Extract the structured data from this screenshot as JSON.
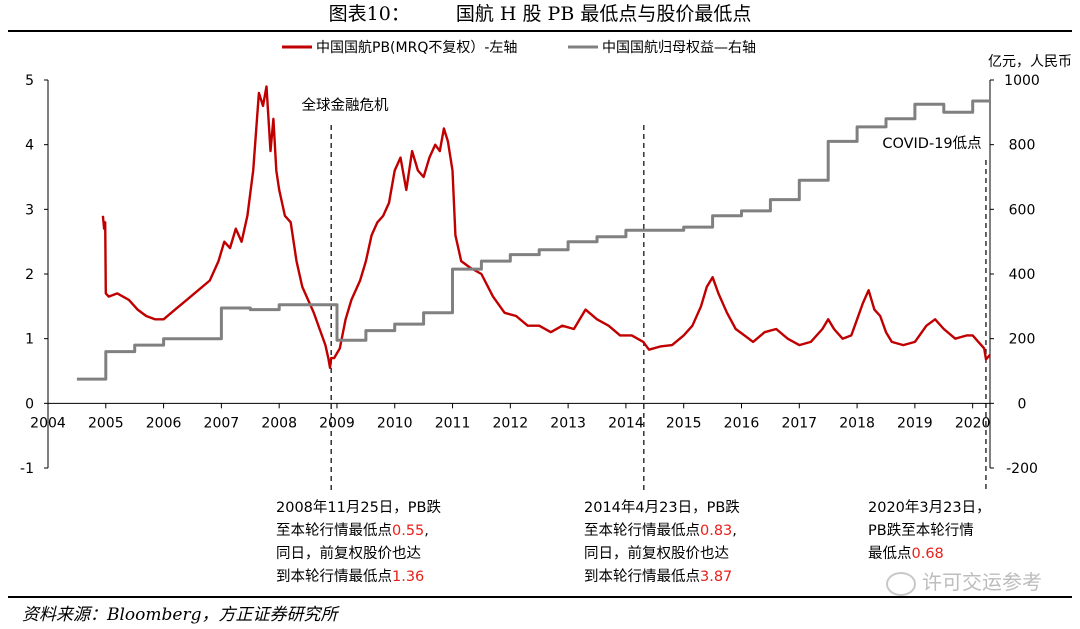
{
  "figure": {
    "number": "图表10：",
    "title": "国航 H 股 PB 最低点与股价最低点",
    "source": "资料来源：Bloomberg，方正证券研究所",
    "watermark": "许可交运参考",
    "right_axis_unit": "亿元，人民币"
  },
  "colors": {
    "pb": "#c00000",
    "equity": "#808080",
    "annotation_red": "#e8201a"
  },
  "chart_data": {
    "type": "line",
    "x_ticks": [
      "2004",
      "2005",
      "2006",
      "2007",
      "2008",
      "2009",
      "2010",
      "2011",
      "2012",
      "2013",
      "2014",
      "2015",
      "2016",
      "2017",
      "2018",
      "2019",
      "2020"
    ],
    "xlim": [
      2004,
      2020.3
    ],
    "y_left": {
      "ticks": [
        "5",
        "4",
        "3",
        "2",
        "1",
        "0",
        "-1"
      ],
      "ylim": [
        -1,
        5
      ]
    },
    "y_right": {
      "ticks": [
        "1000",
        "800",
        "600",
        "400",
        "200",
        "0",
        "-200"
      ],
      "ylim": [
        -200,
        1000
      ],
      "unit": "亿元，人民币"
    },
    "legend": {
      "position": "top",
      "entries": [
        "中国国航PB(MRQ不复权）-左轴",
        "中国国航归母权益—右轴"
      ]
    },
    "series": [
      {
        "name": "中国国航PB(MRQ不复权）-左轴",
        "axis": "left",
        "x": [
          2004.95,
          2004.97,
          2004.99,
          2005.0,
          2005.05,
          2005.2,
          2005.4,
          2005.55,
          2005.7,
          2005.85,
          2006.0,
          2006.2,
          2006.4,
          2006.6,
          2006.8,
          2006.95,
          2007.05,
          2007.15,
          2007.25,
          2007.35,
          2007.45,
          2007.55,
          2007.65,
          2007.72,
          2007.78,
          2007.85,
          2007.9,
          2007.95,
          2008.0,
          2008.1,
          2008.2,
          2008.3,
          2008.4,
          2008.5,
          2008.6,
          2008.7,
          2008.8,
          2008.85,
          2008.88,
          2008.9,
          2008.95,
          2009.05,
          2009.15,
          2009.25,
          2009.4,
          2009.5,
          2009.6,
          2009.7,
          2009.8,
          2009.9,
          2010.0,
          2010.1,
          2010.2,
          2010.3,
          2010.4,
          2010.5,
          2010.6,
          2010.7,
          2010.78,
          2010.85,
          2010.92,
          2011.0,
          2011.05,
          2011.15,
          2011.3,
          2011.5,
          2011.7,
          2011.9,
          2012.1,
          2012.3,
          2012.5,
          2012.7,
          2012.9,
          2013.1,
          2013.3,
          2013.5,
          2013.7,
          2013.9,
          2014.1,
          2014.3,
          2014.4,
          2014.6,
          2014.8,
          2015.0,
          2015.15,
          2015.3,
          2015.4,
          2015.5,
          2015.6,
          2015.75,
          2015.9,
          2016.05,
          2016.2,
          2016.4,
          2016.6,
          2016.8,
          2017.0,
          2017.2,
          2017.4,
          2017.5,
          2017.6,
          2017.75,
          2017.9,
          2018.0,
          2018.1,
          2018.2,
          2018.3,
          2018.4,
          2018.5,
          2018.6,
          2018.8,
          2019.0,
          2019.2,
          2019.35,
          2019.5,
          2019.7,
          2019.9,
          2020.0,
          2020.1,
          2020.2,
          2020.23,
          2020.3
        ],
        "values": [
          2.9,
          2.7,
          2.8,
          1.7,
          1.65,
          1.7,
          1.6,
          1.45,
          1.35,
          1.3,
          1.3,
          1.45,
          1.6,
          1.75,
          1.9,
          2.2,
          2.5,
          2.4,
          2.7,
          2.5,
          2.9,
          3.6,
          4.8,
          4.6,
          4.9,
          3.9,
          4.4,
          3.6,
          3.3,
          2.9,
          2.8,
          2.2,
          1.8,
          1.6,
          1.4,
          1.15,
          0.9,
          0.7,
          0.55,
          0.7,
          0.7,
          0.85,
          1.3,
          1.6,
          1.9,
          2.2,
          2.6,
          2.8,
          2.9,
          3.1,
          3.6,
          3.8,
          3.3,
          3.9,
          3.6,
          3.5,
          3.8,
          4.0,
          3.9,
          4.25,
          4.05,
          3.6,
          2.6,
          2.2,
          2.1,
          2.0,
          1.65,
          1.4,
          1.35,
          1.2,
          1.2,
          1.1,
          1.2,
          1.15,
          1.45,
          1.3,
          1.2,
          1.05,
          1.05,
          0.95,
          0.83,
          0.88,
          0.9,
          1.05,
          1.2,
          1.5,
          1.8,
          1.95,
          1.7,
          1.4,
          1.15,
          1.05,
          0.95,
          1.1,
          1.15,
          1.0,
          0.9,
          0.95,
          1.15,
          1.3,
          1.15,
          1.0,
          1.05,
          1.3,
          1.55,
          1.75,
          1.45,
          1.35,
          1.1,
          0.95,
          0.9,
          0.95,
          1.2,
          1.3,
          1.15,
          1.0,
          1.05,
          1.05,
          0.95,
          0.85,
          0.68,
          0.75
        ]
      },
      {
        "name": "中国国航归母权益—右轴",
        "axis": "right",
        "step": true,
        "x": [
          2004.5,
          2005.0,
          2005.5,
          2006.0,
          2006.99,
          2007.0,
          2007.5,
          2008.0,
          2008.99,
          2009.0,
          2009.5,
          2010.0,
          2010.5,
          2011.0,
          2011.5,
          2012.0,
          2012.5,
          2013.0,
          2013.5,
          2014.0,
          2014.5,
          2015.0,
          2015.5,
          2016.0,
          2016.5,
          2017.0,
          2017.5,
          2018.0,
          2018.5,
          2019.0,
          2019.5,
          2020.0,
          2020.3
        ],
        "values": [
          75,
          160,
          180,
          200,
          200,
          295,
          290,
          305,
          305,
          195,
          225,
          245,
          280,
          415,
          440,
          460,
          475,
          500,
          515,
          535,
          535,
          545,
          580,
          595,
          630,
          690,
          810,
          855,
          880,
          925,
          900,
          935,
          935
        ]
      }
    ],
    "annotations": {
      "crisis_label": "全球金融危机",
      "covid_label": "COVID-19低点",
      "markers": [
        {
          "x": 2008.9,
          "lines": [
            "2008年11月25日，PB跌",
            "至本轮行情最低点",
            "同日，前复权股价也达",
            "到本轮行情最低点"
          ],
          "pb": "0.55",
          "price": "1.36"
        },
        {
          "x": 2014.31,
          "lines": [
            "2014年4月23日，PB跌",
            "至本轮行情最低点",
            "同日，前复权股价也达",
            "到本轮行情最低点"
          ],
          "pb": "0.83",
          "price": "3.87"
        },
        {
          "x": 2020.23,
          "lines": [
            "2020年3月23日，",
            "PB跌至本轮行情",
            "最低点"
          ],
          "pb": "0.68"
        }
      ]
    }
  }
}
